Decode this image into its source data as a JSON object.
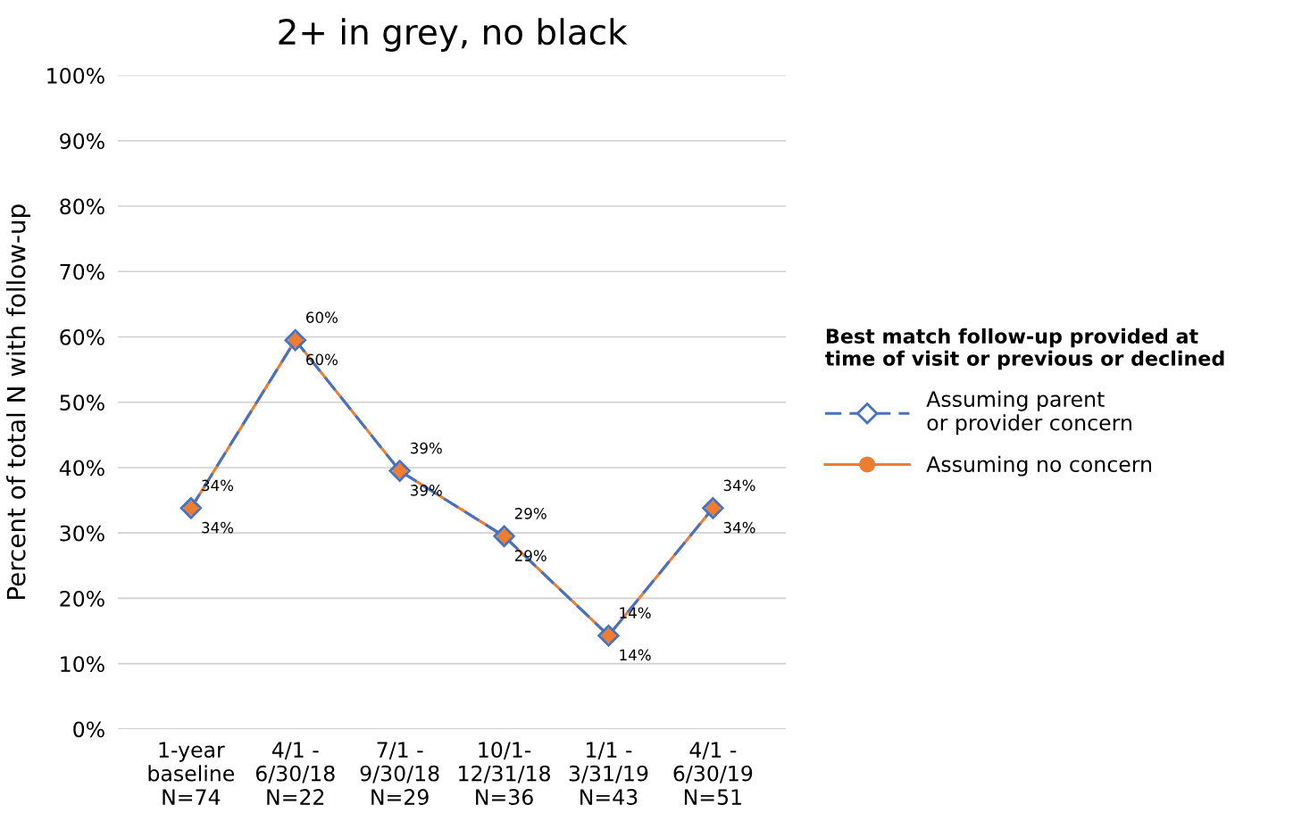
{
  "chart_data": {
    "type": "line",
    "title": "2+ in grey, no black",
    "ylabel": "Percent of total N with follow-up",
    "categories": [
      "1-year\nbaseline\nN=74",
      "4/1 -\n6/30/18\nN=22",
      "7/1 -\n9/30/18\nN=29",
      "10/1-\n12/31/18\nN=36",
      "1/1 -\n3/31/19\nN=43",
      "4/1 -\n6/30/19\nN=51"
    ],
    "series": [
      {
        "name": "Assuming no concern",
        "color": "#ed7d31",
        "marker": "circle",
        "line_style": "solid",
        "values": [
          33.8,
          59.5,
          39.5,
          29.5,
          14.3,
          33.8
        ],
        "value_labels": [
          "34%",
          "60%",
          "39%",
          "29%",
          "14%",
          "34%"
        ]
      },
      {
        "name": "Assuming parent\nor provider concern",
        "color": "#4472c4",
        "marker": "diamond",
        "line_style": "dashed",
        "values": [
          33.8,
          59.5,
          39.5,
          29.5,
          14.3,
          33.8
        ],
        "value_labels": [
          "34%",
          "60%",
          "39%",
          "29%",
          "14%",
          "34%"
        ]
      }
    ],
    "ylim": [
      0,
      100
    ],
    "yticks": [
      {
        "value": 0,
        "label": "0%"
      },
      {
        "value": 10,
        "label": "10%"
      },
      {
        "value": 20,
        "label": "20%"
      },
      {
        "value": 30,
        "label": "30%"
      },
      {
        "value": 40,
        "label": "40%"
      },
      {
        "value": 50,
        "label": "50%"
      },
      {
        "value": 60,
        "label": "60%"
      },
      {
        "value": 70,
        "label": "70%"
      },
      {
        "value": 80,
        "label": "80%"
      },
      {
        "value": 90,
        "label": "90%"
      },
      {
        "value": 100,
        "label": "100%"
      }
    ],
    "grid": "y",
    "legend": "right",
    "legend_title": "Best match follow-up provided at\ntime of visit or previous or declined"
  }
}
